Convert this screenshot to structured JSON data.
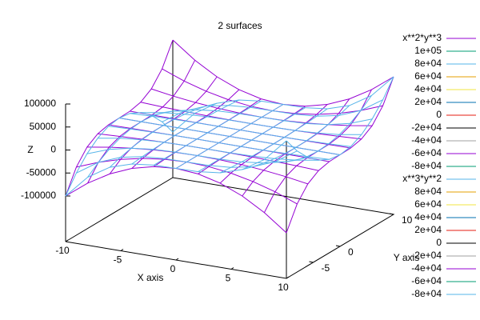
{
  "chart_data": {
    "type": "surface3d",
    "title": "2 surfaces",
    "xlabel": "X axis",
    "ylabel": "Y axis",
    "zlabel": "Z",
    "x": [
      -10,
      -8,
      -6,
      -4,
      -2,
      0,
      2,
      4,
      6,
      8,
      10
    ],
    "y": [
      -10,
      -8,
      -6,
      -4,
      -2,
      0,
      2,
      4,
      6,
      8,
      10
    ],
    "xlim": [
      -10,
      10
    ],
    "ylim": [
      -10,
      10
    ],
    "zlim": [
      -100000,
      100000
    ],
    "xticks": [
      -10,
      -5,
      0,
      5,
      10
    ],
    "yticks": [
      10,
      -5,
      0
    ],
    "zticks": [
      -100000,
      -50000,
      0,
      50000,
      100000
    ],
    "series": [
      {
        "name": "x**2*y**3",
        "color": "#9400d3",
        "z": [
          [
            -100000,
            -51200,
            -21600,
            -6400,
            -800,
            0,
            800,
            6400,
            21600,
            51200,
            100000
          ],
          [
            -64000,
            -32768,
            -13824,
            -4096,
            -512,
            0,
            512,
            4096,
            13824,
            32768,
            64000
          ],
          [
            -36000,
            -18432,
            -7776,
            -2304,
            -288,
            0,
            288,
            2304,
            7776,
            18432,
            36000
          ],
          [
            -16000,
            -8192,
            -3456,
            -1024,
            -128,
            0,
            128,
            1024,
            3456,
            8192,
            16000
          ],
          [
            -4000,
            -2048,
            -864,
            -256,
            -32,
            0,
            32,
            256,
            864,
            2048,
            4000
          ],
          [
            0,
            0,
            0,
            0,
            0,
            0,
            0,
            0,
            0,
            0,
            0
          ],
          [
            -4000,
            -2048,
            -864,
            -256,
            -32,
            0,
            32,
            256,
            864,
            2048,
            4000
          ],
          [
            -16000,
            -8192,
            -3456,
            -1024,
            -128,
            0,
            128,
            1024,
            3456,
            8192,
            16000
          ],
          [
            -36000,
            -18432,
            -7776,
            -2304,
            -288,
            0,
            288,
            2304,
            7776,
            18432,
            36000
          ],
          [
            -64000,
            -32768,
            -13824,
            -4096,
            -512,
            0,
            512,
            4096,
            13824,
            32768,
            64000
          ],
          [
            -100000,
            -51200,
            -21600,
            -6400,
            -800,
            0,
            800,
            6400,
            21600,
            51200,
            100000
          ]
        ],
        "contour_levels": [
          {
            "value": 100000,
            "label": "1e+05"
          },
          {
            "value": 80000,
            "label": "8e+04"
          },
          {
            "value": 60000,
            "label": "6e+04"
          },
          {
            "value": 40000,
            "label": "4e+04"
          },
          {
            "value": 20000,
            "label": "2e+04"
          },
          0,
          {
            "value": -20000,
            "label": "-2e+04"
          },
          {
            "value": -40000,
            "label": "-4e+04"
          },
          {
            "value": -60000,
            "label": "-6e+04"
          },
          {
            "value": -80000,
            "label": "-8e+04"
          }
        ],
        "contour_colors": [
          "#009e73",
          "#56b4e9",
          "#e69f00",
          "#f0e442",
          "#0072b2",
          "#e51e10",
          "#000000",
          "#a0a0a0",
          "#9400d3",
          "#009e73"
        ]
      },
      {
        "name": "x**3*y**2",
        "color": "#56b4e9",
        "z": [
          [
            -100000,
            -64000,
            -36000,
            -16000,
            -4000,
            0,
            -4000,
            -16000,
            -36000,
            -64000,
            -100000
          ],
          [
            -51200,
            -32768,
            -18432,
            -8192,
            -2048,
            0,
            -2048,
            -8192,
            -18432,
            -32768,
            -51200
          ],
          [
            -21600,
            -13824,
            -7776,
            -3456,
            -864,
            0,
            -864,
            -3456,
            -7776,
            -13824,
            -21600
          ],
          [
            -6400,
            -4096,
            -2304,
            -1024,
            -256,
            0,
            -256,
            -1024,
            -2304,
            -4096,
            -6400
          ],
          [
            -800,
            -512,
            -288,
            -128,
            -32,
            0,
            -32,
            -128,
            -288,
            -512,
            -800
          ],
          [
            0,
            0,
            0,
            0,
            0,
            0,
            0,
            0,
            0,
            0,
            0
          ],
          [
            800,
            512,
            288,
            128,
            32,
            0,
            32,
            128,
            288,
            512,
            800
          ],
          [
            6400,
            4096,
            2304,
            1024,
            256,
            0,
            256,
            1024,
            2304,
            4096,
            6400
          ],
          [
            21600,
            13824,
            7776,
            3456,
            864,
            0,
            864,
            3456,
            7776,
            13824,
            21600
          ],
          [
            51200,
            32768,
            18432,
            8192,
            2048,
            0,
            2048,
            8192,
            18432,
            32768,
            51200
          ],
          [
            100000,
            64000,
            36000,
            16000,
            4000,
            0,
            4000,
            16000,
            36000,
            64000,
            100000
          ]
        ],
        "contour_levels": [
          {
            "value": 80000,
            "label": "8e+04"
          },
          {
            "value": 60000,
            "label": "6e+04"
          },
          {
            "value": 40000,
            "label": "4e+04"
          },
          {
            "value": 20000,
            "label": "2e+04"
          },
          0,
          {
            "value": -20000,
            "label": "-2e+04"
          },
          {
            "value": -40000,
            "label": "-4e+04"
          },
          {
            "value": -60000,
            "label": "-6e+04"
          },
          {
            "value": -80000,
            "label": "-8e+04"
          }
        ],
        "contour_colors": [
          "#e69f00",
          "#f0e442",
          "#0072b2",
          "#e51e10",
          "#000000",
          "#a0a0a0",
          "#9400d3",
          "#009e73",
          "#56b4e9"
        ]
      }
    ]
  }
}
